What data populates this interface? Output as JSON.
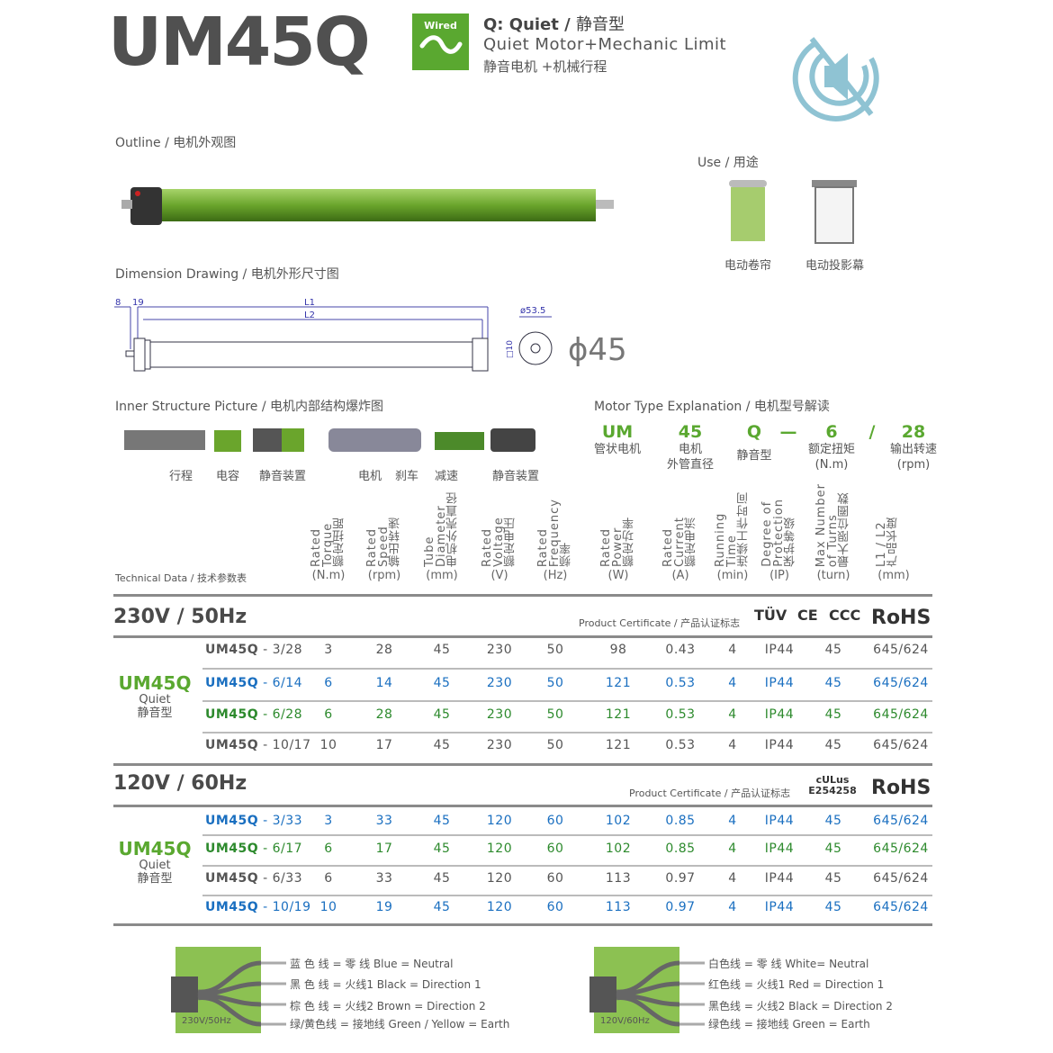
{
  "header": {
    "model": "UM45Q",
    "badge": "Wired",
    "type_line": "Q: Quiet /",
    "type_cn": "静音型",
    "desc_en": "Quiet Motor+Mechanic Limit",
    "desc_cn": "静音电机 +机械行程",
    "icon": "mute-speaker-icon"
  },
  "outline": {
    "title": "Outline / 电机外观图"
  },
  "use": {
    "title": "Use / 用途",
    "items": [
      "电动卷帘",
      "电动投影幕"
    ]
  },
  "dimension": {
    "title": "Dimension Drawing / 电机外形尺寸图",
    "labels": {
      "a": "8",
      "b": "19",
      "l1": "L1",
      "l2": "L2",
      "head": "ø53.5",
      "shaft": "□10",
      "tube": "ϕ45"
    }
  },
  "inner": {
    "title": "Inner Structure Picture / 电机内部结构爆炸图",
    "parts": [
      "行程",
      "电容",
      "静音装置",
      "电机",
      "刹车",
      "减速",
      "静音装置"
    ]
  },
  "motor_type": {
    "title": "Motor Type Explanation / 电机型号解读",
    "parts": [
      {
        "code": "UM",
        "desc": "管状电机"
      },
      {
        "code": "45",
        "desc": "电机\n外管直径"
      },
      {
        "code": "Q",
        "desc": "静音型"
      },
      {
        "code": "—",
        "desc": ""
      },
      {
        "code": "6",
        "desc": "额定扭矩\n(N.m)"
      },
      {
        "code": "/",
        "desc": ""
      },
      {
        "code": "28",
        "desc": "输出转速\n(rpm)"
      }
    ]
  },
  "table": {
    "label": "Technical Data / 技术参数表",
    "columns": [
      {
        "en1": "Rated",
        "en2": "Torque",
        "cn": "额定扭距",
        "unit": "(N.m)"
      },
      {
        "en1": "Rated",
        "en2": "Speed",
        "cn": "输出转速",
        "unit": "(rpm)"
      },
      {
        "en1": "Tube",
        "en2": "Diameter",
        "cn": "电机外壳直径",
        "unit": "(mm)"
      },
      {
        "en1": "Rated",
        "en2": "Voltage",
        "cn": "额定电压",
        "unit": "(V)"
      },
      {
        "en1": "Rated",
        "en2": "Frequency",
        "cn": "频率",
        "unit": "(Hz)"
      },
      {
        "en1": "Rated",
        "en2": "Power",
        "cn": "额定功率",
        "unit": "(W)"
      },
      {
        "en1": "Rated",
        "en2": "Current",
        "cn": "额定电流",
        "unit": "(A)"
      },
      {
        "en1": "Running",
        "en2": "Time",
        "cn": "连续工作时间",
        "unit": "(min)"
      },
      {
        "en1": "Degree of",
        "en2": "Protection",
        "cn": "保护等级",
        "unit": "(IP)"
      },
      {
        "en1": "Max Number",
        "en2": "of Turns",
        "cn": "最大限位圈数",
        "unit": "(turn)"
      },
      {
        "en1": "L1 / L2",
        "en2": "",
        "cn": "产品长度",
        "unit": "(mm)"
      }
    ],
    "groups": [
      {
        "voltage": "230V / 50Hz",
        "cert_label": "Product Certificate / 产品认证标志",
        "certs": [
          "TÜV",
          "CE",
          "CCC",
          "RoHS"
        ],
        "series": "UM45Q",
        "series_en": "Quiet",
        "series_cn": "静音型",
        "rows": [
          {
            "color": "gray",
            "model": "UM45Q",
            "suffix": " - 3/28",
            "v": [
              "3",
              "28",
              "45",
              "230",
              "50",
              "98",
              "0.43",
              "4",
              "IP44",
              "45",
              "645/624"
            ]
          },
          {
            "color": "blue",
            "model": "UM45Q",
            "suffix": " - 6/14",
            "v": [
              "6",
              "14",
              "45",
              "230",
              "50",
              "121",
              "0.53",
              "4",
              "IP44",
              "45",
              "645/624"
            ]
          },
          {
            "color": "green",
            "model": "UM45Q",
            "suffix": " - 6/28",
            "v": [
              "6",
              "28",
              "45",
              "230",
              "50",
              "121",
              "0.53",
              "4",
              "IP44",
              "45",
              "645/624"
            ]
          },
          {
            "color": "gray",
            "model": "UM45Q",
            "suffix": " - 10/17",
            "v": [
              "10",
              "17",
              "45",
              "230",
              "50",
              "121",
              "0.53",
              "4",
              "IP44",
              "45",
              "645/624"
            ]
          }
        ]
      },
      {
        "voltage": "120V / 60Hz",
        "cert_label": "Product Certificate / 产品认证标志",
        "certs": [
          "cULus E254258",
          "RoHS"
        ],
        "series": "UM45Q",
        "series_en": "Quiet",
        "series_cn": "静音型",
        "rows": [
          {
            "color": "blue",
            "model": "UM45Q",
            "suffix": " - 3/33",
            "v": [
              "3",
              "33",
              "45",
              "120",
              "60",
              "102",
              "0.85",
              "4",
              "IP44",
              "45",
              "645/624"
            ]
          },
          {
            "color": "green",
            "model": "UM45Q",
            "suffix": " - 6/17",
            "v": [
              "6",
              "17",
              "45",
              "120",
              "60",
              "102",
              "0.85",
              "4",
              "IP44",
              "45",
              "645/624"
            ]
          },
          {
            "color": "gray",
            "model": "UM45Q",
            "suffix": " - 6/33",
            "v": [
              "6",
              "33",
              "45",
              "120",
              "60",
              "113",
              "0.97",
              "4",
              "IP44",
              "45",
              "645/624"
            ]
          },
          {
            "color": "blue",
            "model": "UM45Q",
            "suffix": " - 10/19",
            "v": [
              "10",
              "19",
              "45",
              "120",
              "60",
              "113",
              "0.97",
              "4",
              "IP44",
              "45",
              "645/624"
            ]
          }
        ]
      }
    ]
  },
  "wiring": [
    {
      "label": "230V/50Hz",
      "lines": [
        "蓝 色 线 = 零  线  Blue = Neutral",
        "黑 色 线 = 火线1  Black = Direction 1",
        "棕 色 线 = 火线2  Brown = Direction 2",
        "绿/黄色线 = 接地线  Green / Yellow = Earth"
      ]
    },
    {
      "label": "120V/60Hz",
      "lines": [
        "白色线 = 零  线  White= Neutral",
        "红色线 = 火线1  Red = Direction 1",
        "黑色线 = 火线2  Black = Direction 2",
        "绿色线 = 接地线  Green = Earth"
      ]
    }
  ],
  "colors": {
    "green": "#5aa830",
    "blue": "#1a6fc0",
    "dark_green": "#2d8a2d",
    "icon": "#8fc3d3"
  }
}
